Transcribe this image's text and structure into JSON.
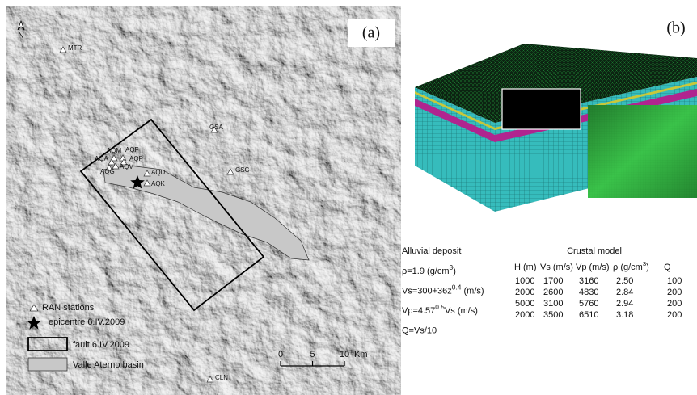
{
  "panel_a": {
    "label": "(a)",
    "north": "N",
    "stations": [
      "MTR",
      "GSA",
      "GSG",
      "CLN",
      "AQM",
      "AQF",
      "AQA",
      "AQP",
      "AQV",
      "AQG",
      "AQU",
      "AQK"
    ],
    "legend": {
      "stations": "RAN stations",
      "epicentre": "epicentre 6.IV.2009",
      "fault": "fault 6.IV.2009",
      "basin": "Valle Aterno basin"
    },
    "scale_bar": {
      "ticks": [
        0,
        5,
        10
      ],
      "unit": "Km"
    }
  },
  "panel_b": {
    "label": "(b)",
    "alluvial": {
      "title": "Alluvial deposit",
      "lines": [
        {
          "base": "ρ=1.9 (g/cm",
          "sup": "3",
          "after": ")"
        },
        {
          "base": "Vs=300+36z",
          "sup": "0.4",
          "after": " (m/s)"
        },
        {
          "base": "Vp=4.57",
          "sup": "0.5",
          "after": "Vs (m/s)"
        },
        {
          "base": "Q=Vs/10"
        }
      ]
    },
    "crustal": {
      "title": "Crustal model",
      "header": [
        {
          "base": "H (m)"
        },
        {
          "base": "Vs (m/s)"
        },
        {
          "base": "Vp (m/s)"
        },
        {
          "base": "ρ (g/cm",
          "sup": "3",
          "after": ")"
        },
        {
          "base": "Q"
        }
      ],
      "rows": [
        [
          "1000",
          "1700",
          "3160",
          "2.50",
          "100"
        ],
        [
          "2000",
          "2600",
          "4830",
          "2.84",
          "200"
        ],
        [
          "5000",
          "3100",
          "5760",
          "2.94",
          "200"
        ],
        [
          "2000",
          "3500",
          "6510",
          "3.18",
          "200"
        ]
      ]
    }
  }
}
